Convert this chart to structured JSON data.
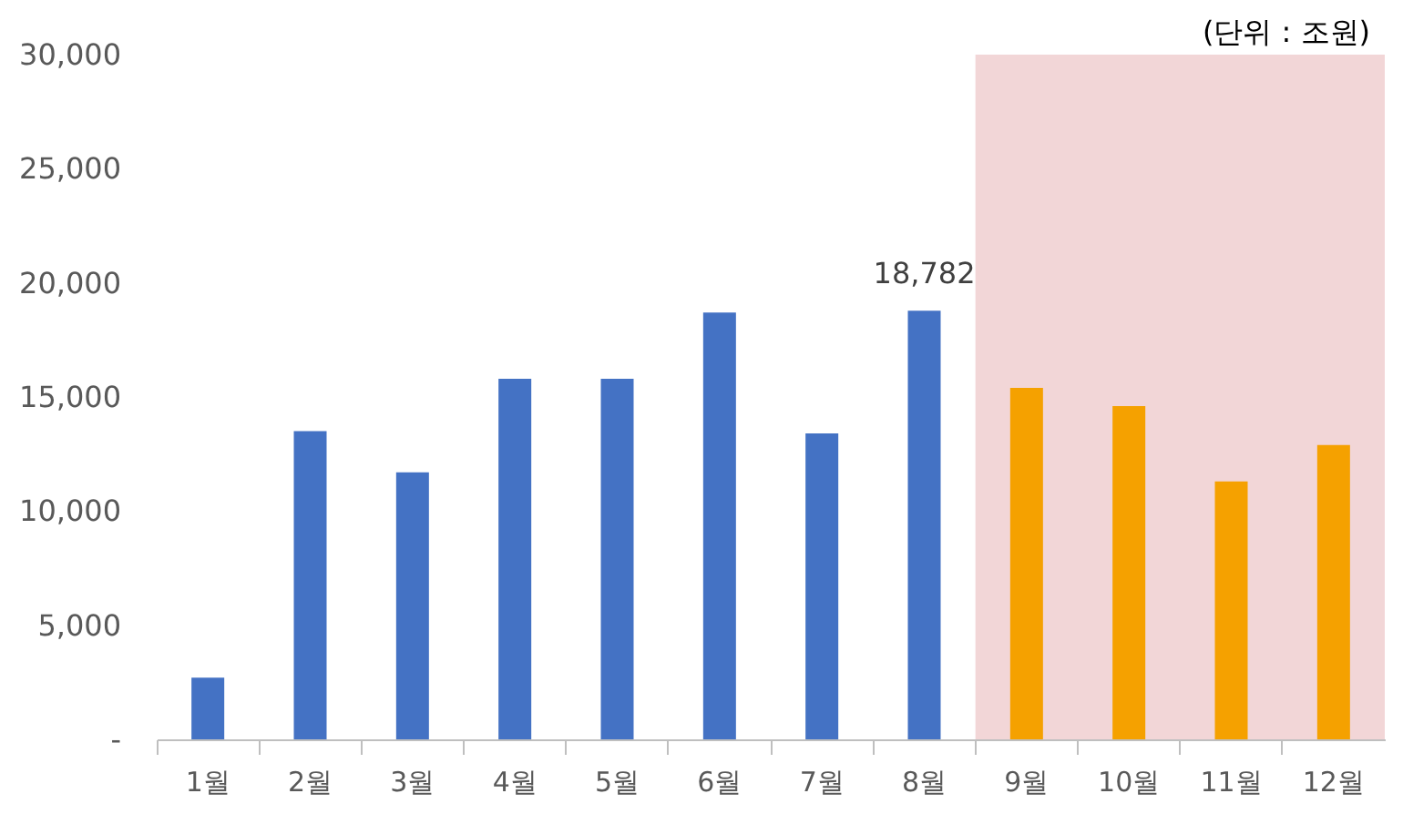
{
  "chart_data": {
    "type": "bar",
    "categories": [
      "1월",
      "2월",
      "3월",
      "4월",
      "5월",
      "6월",
      "7월",
      "8월",
      "9월",
      "10월",
      "11월",
      "12월"
    ],
    "values": [
      2700,
      13500,
      11700,
      15800,
      15800,
      18700,
      13400,
      18782,
      15400,
      14600,
      11300,
      12900
    ],
    "colors": [
      "#4472c4",
      "#4472c4",
      "#4472c4",
      "#4472c4",
      "#4472c4",
      "#4472c4",
      "#4472c4",
      "#4472c4",
      "#f5a100",
      "#f5a100",
      "#f5a100",
      "#f5a100"
    ],
    "value_labels": [
      null,
      null,
      null,
      null,
      null,
      null,
      null,
      "18,782",
      null,
      null,
      null,
      null
    ],
    "ylim": [
      0,
      30000
    ],
    "yticks": [
      {
        "value": 0,
        "label": "-"
      },
      {
        "value": 5000,
        "label": "5,000"
      },
      {
        "value": 10000,
        "label": "10,000"
      },
      {
        "value": 15000,
        "label": "15,000"
      },
      {
        "value": 20000,
        "label": "20,000"
      },
      {
        "value": 25000,
        "label": "25,000"
      },
      {
        "value": 30000,
        "label": "30,000"
      }
    ],
    "bands": [
      {
        "axis": "x",
        "from": "9월",
        "to": "12월",
        "color": "#f2d6d7"
      }
    ],
    "annotations": [
      "(단위 : 조원)"
    ],
    "grid": false
  }
}
